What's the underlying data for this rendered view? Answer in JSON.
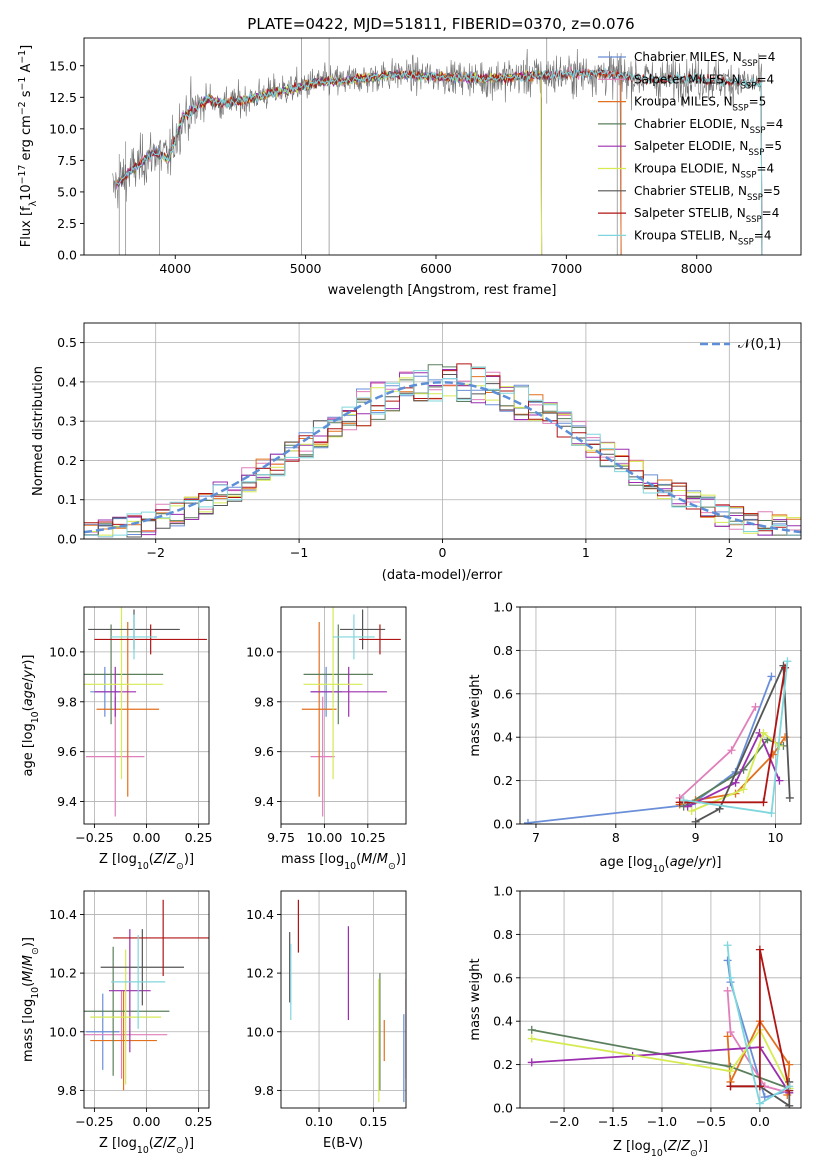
{
  "figure_title": "PLATE=0422, MJD=51811, FIBERID=0370, z=0.076",
  "colors": {
    "C0": "#ffffff",
    "chabrier_miles": "#6a8fd8",
    "salpeter_miles": "#e07fba",
    "kroupa_miles": "#e2701f",
    "chabrier_elodie": "#5b7f5c",
    "salpeter_elodie": "#9b2faf",
    "kroupa_elodie": "#d6ea52",
    "chabrier_stelib": "#555555",
    "salpeter_stelib": "#b01515",
    "kroupa_stelib": "#7fd6dc",
    "normal_curve": "#5d8fd8"
  },
  "chart_data": [
    {
      "id": "spectrum",
      "type": "line",
      "title": "PLATE=0422, MJD=51811, FIBERID=0370, z=0.076",
      "xlabel": "wavelength [Angstrom, rest frame]",
      "ylabel": "Flux [f_λ 10^-17 erg cm^-2 s^-1 A^-1]",
      "xlim": [
        3300,
        8800
      ],
      "ylim": [
        0,
        17.2
      ],
      "xticks": [
        4000,
        5000,
        6000,
        7000,
        8000
      ],
      "yticks": [
        0.0,
        2.5,
        5.0,
        7.5,
        10.0,
        12.5,
        15.0
      ],
      "grid": false,
      "legend_position": "right",
      "continuum": {
        "x": [
          3500,
          3550,
          3650,
          3750,
          3850,
          3950,
          4050,
          4150,
          4250,
          4350,
          4500,
          4700,
          4900,
          5100,
          5300,
          5500,
          5700,
          5900,
          6100,
          6300,
          6500,
          6700,
          6900,
          7100,
          7300,
          7500,
          7700,
          7900,
          8100,
          8300,
          8500
        ],
        "y": [
          4.8,
          5.6,
          6.5,
          7.4,
          8.2,
          7.6,
          10.8,
          11.6,
          12.4,
          12.0,
          12.2,
          12.8,
          13.2,
          13.7,
          13.8,
          14.1,
          14.3,
          14.2,
          14.1,
          14.0,
          14.0,
          14.2,
          14.3,
          14.4,
          14.4,
          14.1,
          13.9,
          14.0,
          13.9,
          13.7,
          13.6
        ]
      },
      "series": [
        {
          "name": "Chabrier MILES, N_SSP=4",
          "legend_main": "Chabrier MILES, N",
          "legend_sub": "SSP",
          "legend_tail": "=4",
          "color": "#6a8fd8"
        },
        {
          "name": "Salpeter MILES, N_SSP=4",
          "legend_main": "Salpeter MILES, N",
          "legend_sub": "SSP",
          "legend_tail": "=4",
          "color": "#e07fba"
        },
        {
          "name": "Kroupa MILES, N_SSP=5",
          "legend_main": "Kroupa MILES, N",
          "legend_sub": "SSP",
          "legend_tail": "=5",
          "color": "#e2701f"
        },
        {
          "name": "Chabrier ELODIE, N_SSP=4",
          "legend_main": "Chabrier ELODIE, N",
          "legend_sub": "SSP",
          "legend_tail": "=4",
          "color": "#5b7f5c"
        },
        {
          "name": "Salpeter ELODIE, N_SSP=5",
          "legend_main": "Salpeter ELODIE, N",
          "legend_sub": "SSP",
          "legend_tail": "=5",
          "color": "#9b2faf"
        },
        {
          "name": "Kroupa ELODIE, N_SSP=4",
          "legend_main": "Kroupa ELODIE, N",
          "legend_sub": "SSP",
          "legend_tail": "=4",
          "color": "#d6ea52"
        },
        {
          "name": "Chabrier STELIB, N_SSP=5",
          "legend_main": "Chabrier STELIB, N",
          "legend_sub": "SSP",
          "legend_tail": "=5",
          "color": "#555555"
        },
        {
          "name": "Salpeter STELIB, N_SSP=4",
          "legend_main": "Salpeter STELIB, N",
          "legend_sub": "SSP",
          "legend_tail": "=4",
          "color": "#b01515"
        },
        {
          "name": "Kroupa STELIB, N_SSP=4",
          "legend_main": "Kroupa STELIB, N",
          "legend_sub": "SSP",
          "legend_tail": "=4",
          "color": "#7fd6dc"
        }
      ],
      "model_ranges": [
        [
          3550,
          7420
        ],
        [
          3550,
          7420
        ],
        [
          3550,
          7420
        ],
        [
          3550,
          6810
        ],
        [
          3550,
          6810
        ],
        [
          3900,
          6810
        ],
        [
          3550,
          8500
        ],
        [
          3550,
          8500
        ],
        [
          3550,
          8500
        ]
      ]
    },
    {
      "id": "residuals",
      "type": "histogram",
      "xlabel": "(data-model)/error",
      "ylabel": "Normed distribution",
      "xlim": [
        -2.5,
        2.5
      ],
      "ylim": [
        0,
        0.55
      ],
      "xticks": [
        -2,
        -1,
        0,
        1,
        2
      ],
      "yticks": [
        0.0,
        0.1,
        0.2,
        0.3,
        0.4,
        0.5
      ],
      "grid": true,
      "legend_position": "top-right",
      "legend_label": "𝒩(0,1)",
      "bin_width": 0.1,
      "bin_start": -2.5
    },
    {
      "id": "age_vs_Z",
      "type": "errorbar",
      "xlabel": "Z [log10(Z/Z⊙)]",
      "ylabel": "age [log10(age/yr)]",
      "xlim": [
        -0.3,
        0.3
      ],
      "ylim": [
        9.31,
        10.18
      ],
      "xticks": [
        -0.25,
        0.0,
        0.25
      ],
      "yticks": [
        9.4,
        9.6,
        9.8,
        10.0
      ],
      "grid": true,
      "points": [
        {
          "x": -0.2,
          "xerr": 0.07,
          "y": 9.84,
          "yerr": 0.1
        },
        {
          "x": -0.15,
          "xerr": 0.14,
          "y": 9.58,
          "yerr": 0.24
        },
        {
          "x": -0.09,
          "xerr": 0.15,
          "y": 9.77,
          "yerr": 0.35
        },
        {
          "x": -0.17,
          "xerr": 0.25,
          "y": 9.91,
          "yerr": 0.2
        },
        {
          "x": -0.15,
          "xerr": 0.1,
          "y": 9.84,
          "yerr": 0.1
        },
        {
          "x": -0.12,
          "xerr": 0.2,
          "y": 9.87,
          "yerr": 0.38
        },
        {
          "x": -0.06,
          "xerr": 0.22,
          "y": 10.09,
          "yerr": 0.08
        },
        {
          "x": 0.02,
          "xerr": 0.27,
          "y": 10.05,
          "yerr": 0.06
        },
        {
          "x": -0.06,
          "xerr": 0.11,
          "y": 10.06,
          "yerr": 0.09
        }
      ]
    },
    {
      "id": "age_vs_mass",
      "type": "errorbar",
      "xlabel": "mass [log10(M/M⊙)]",
      "ylabel": "",
      "xlim": [
        9.75,
        10.47
      ],
      "ylim": [
        9.31,
        10.18
      ],
      "xticks": [
        9.75,
        10.0,
        10.25
      ],
      "yticks": [
        9.4,
        9.6,
        9.8,
        10.0
      ],
      "grid": true,
      "points": [
        {
          "x": 10.01,
          "xerr": 0.09,
          "y": 9.84,
          "yerr": 0.1
        },
        {
          "x": 9.99,
          "xerr": 0.07,
          "y": 9.58,
          "yerr": 0.24
        },
        {
          "x": 9.97,
          "xerr": 0.1,
          "y": 9.77,
          "yerr": 0.35
        },
        {
          "x": 10.08,
          "xerr": 0.2,
          "y": 9.91,
          "yerr": 0.2
        },
        {
          "x": 10.14,
          "xerr": 0.22,
          "y": 9.84,
          "yerr": 0.1
        },
        {
          "x": 10.05,
          "xerr": 0.17,
          "y": 9.87,
          "yerr": 0.38
        },
        {
          "x": 10.22,
          "xerr": 0.13,
          "y": 10.09,
          "yerr": 0.08
        },
        {
          "x": 10.32,
          "xerr": 0.12,
          "y": 10.05,
          "yerr": 0.06
        },
        {
          "x": 10.17,
          "xerr": 0.12,
          "y": 10.06,
          "yerr": 0.09
        }
      ]
    },
    {
      "id": "mass_weight_vs_age",
      "type": "line",
      "xlabel": "age [log10(age/yr)]",
      "ylabel": "mass weight",
      "xlim": [
        6.8,
        10.32
      ],
      "ylim": [
        0,
        1.0
      ],
      "xticks": [
        7,
        8,
        9,
        10
      ],
      "yticks": [
        0.0,
        0.2,
        0.4,
        0.6,
        0.8,
        1.0
      ],
      "grid": true,
      "series": [
        {
          "x": [
            6.9,
            8.95,
            9.5,
            9.95
          ],
          "y": [
            0.005,
            0.09,
            0.24,
            0.68
          ]
        },
        {
          "x": [
            8.8,
            9.45,
            9.75
          ],
          "y": [
            0.12,
            0.34,
            0.54
          ]
        },
        {
          "x": [
            8.8,
            9.0,
            9.5,
            9.97,
            10.12
          ],
          "y": [
            0.09,
            0.11,
            0.14,
            0.32,
            0.4
          ]
        },
        {
          "x": [
            8.85,
            9.6,
            9.9,
            10.1
          ],
          "y": [
            0.08,
            0.25,
            0.39,
            0.36
          ]
        },
        {
          "x": [
            8.9,
            9.5,
            9.8,
            10.05
          ],
          "y": [
            0.08,
            0.19,
            0.42,
            0.2
          ]
        },
        {
          "x": [
            8.95,
            9.6,
            9.85,
            10.05
          ],
          "y": [
            0.06,
            0.16,
            0.42,
            0.36
          ]
        },
        {
          "x": [
            9.0,
            9.3,
            10.1,
            10.18
          ],
          "y": [
            0.01,
            0.07,
            0.73,
            0.12
          ]
        },
        {
          "x": [
            8.8,
            9.85,
            10.12
          ],
          "y": [
            0.1,
            0.1,
            0.72
          ]
        },
        {
          "x": [
            8.85,
            9.95,
            10.15
          ],
          "y": [
            0.11,
            0.05,
            0.75
          ]
        }
      ]
    },
    {
      "id": "mass_vs_Z",
      "type": "errorbar",
      "xlabel": "Z [log10(Z/Z⊙)]",
      "ylabel": "mass [log10(M/M⊙)]",
      "xlim": [
        -0.3,
        0.3
      ],
      "ylim": [
        9.74,
        10.48
      ],
      "xticks": [
        -0.25,
        0.0,
        0.25
      ],
      "yticks": [
        9.8,
        10.0,
        10.2,
        10.4
      ],
      "grid": true,
      "points": [
        {
          "x": -0.21,
          "xerr": 0.08,
          "y": 10.0,
          "yerr": 0.13
        },
        {
          "x": -0.12,
          "xerr": 0.22,
          "y": 9.99,
          "yerr": 0.15
        },
        {
          "x": -0.11,
          "xerr": 0.16,
          "y": 9.97,
          "yerr": 0.17
        },
        {
          "x": -0.16,
          "xerr": 0.27,
          "y": 10.07,
          "yerr": 0.22
        },
        {
          "x": -0.08,
          "xerr": 0.1,
          "y": 10.14,
          "yerr": 0.21
        },
        {
          "x": -0.1,
          "xerr": 0.17,
          "y": 10.05,
          "yerr": 0.23
        },
        {
          "x": -0.02,
          "xerr": 0.2,
          "y": 10.22,
          "yerr": 0.13
        },
        {
          "x": 0.08,
          "xerr": 0.24,
          "y": 10.32,
          "yerr": 0.13
        },
        {
          "x": -0.04,
          "xerr": 0.13,
          "y": 10.17,
          "yerr": 0.16
        }
      ]
    },
    {
      "id": "mass_vs_ebv",
      "type": "errorbar",
      "xlabel": "E(B-V)",
      "ylabel": "",
      "xlim": [
        0.065,
        0.18
      ],
      "ylim": [
        9.74,
        10.48
      ],
      "xticks": [
        0.1,
        0.15
      ],
      "yticks": [
        9.8,
        10.0,
        10.2,
        10.4
      ],
      "grid": true,
      "points": [
        {
          "x": 0.178,
          "y": 9.91,
          "yerr": 0.15
        },
        {
          "x": 0.18,
          "y": 10.01,
          "yerr": 0.17
        },
        {
          "x": 0.16,
          "y": 9.97,
          "yerr": 0.07
        },
        {
          "x": 0.156,
          "y": 10.0,
          "yerr": 0.2
        },
        {
          "x": 0.127,
          "y": 10.2,
          "yerr": 0.16
        },
        {
          "x": 0.155,
          "y": 9.97,
          "yerr": 0.21
        },
        {
          "x": 0.073,
          "y": 10.22,
          "yerr": 0.12
        },
        {
          "x": 0.081,
          "y": 10.36,
          "yerr": 0.09
        },
        {
          "x": 0.074,
          "y": 10.17,
          "yerr": 0.13
        }
      ]
    },
    {
      "id": "mass_weight_vs_Z",
      "type": "line",
      "xlabel": "Z [log10(Z/Z⊙)]",
      "ylabel": "mass weight",
      "xlim": [
        -2.45,
        0.42
      ],
      "ylim": [
        0,
        1.0
      ],
      "xticks": [
        -2.0,
        -1.5,
        -1.0,
        -0.5,
        0.0
      ],
      "yticks": [
        0.0,
        0.2,
        0.4,
        0.6,
        0.8,
        1.0
      ],
      "grid": true,
      "series": [
        {
          "x": [
            -0.33,
            -0.3,
            0.05,
            0.3
          ],
          "y": [
            0.68,
            0.58,
            0.05,
            0.08
          ]
        },
        {
          "x": [
            -0.33,
            -0.3,
            0.05,
            0.3
          ],
          "y": [
            0.54,
            0.35,
            0.1,
            0.07
          ]
        },
        {
          "x": [
            -0.33,
            -0.3,
            0.0,
            0.3,
            0.28
          ],
          "y": [
            0.33,
            0.12,
            0.4,
            0.2,
            0.06
          ]
        },
        {
          "x": [
            -2.33,
            -0.3,
            0.3
          ],
          "y": [
            0.36,
            0.19,
            0.09
          ]
        },
        {
          "x": [
            -2.33,
            -1.3,
            0.0,
            0.3
          ],
          "y": [
            0.21,
            0.24,
            0.28,
            0.07
          ]
        },
        {
          "x": [
            -2.33,
            -0.3,
            0.0,
            0.3
          ],
          "y": [
            0.32,
            0.17,
            0.36,
            0.09
          ]
        },
        {
          "x": [
            -0.3,
            0.0,
            0.3,
            0.3
          ],
          "y": [
            0.1,
            0.1,
            0.01,
            0.12
          ]
        },
        {
          "x": [
            -0.3,
            0.0,
            0.0,
            0.3
          ],
          "y": [
            0.1,
            0.1,
            0.73,
            0.08
          ]
        },
        {
          "x": [
            -0.33,
            -0.3,
            0.0,
            0.3
          ],
          "y": [
            0.75,
            0.6,
            0.02,
            0.1
          ]
        }
      ]
    }
  ]
}
